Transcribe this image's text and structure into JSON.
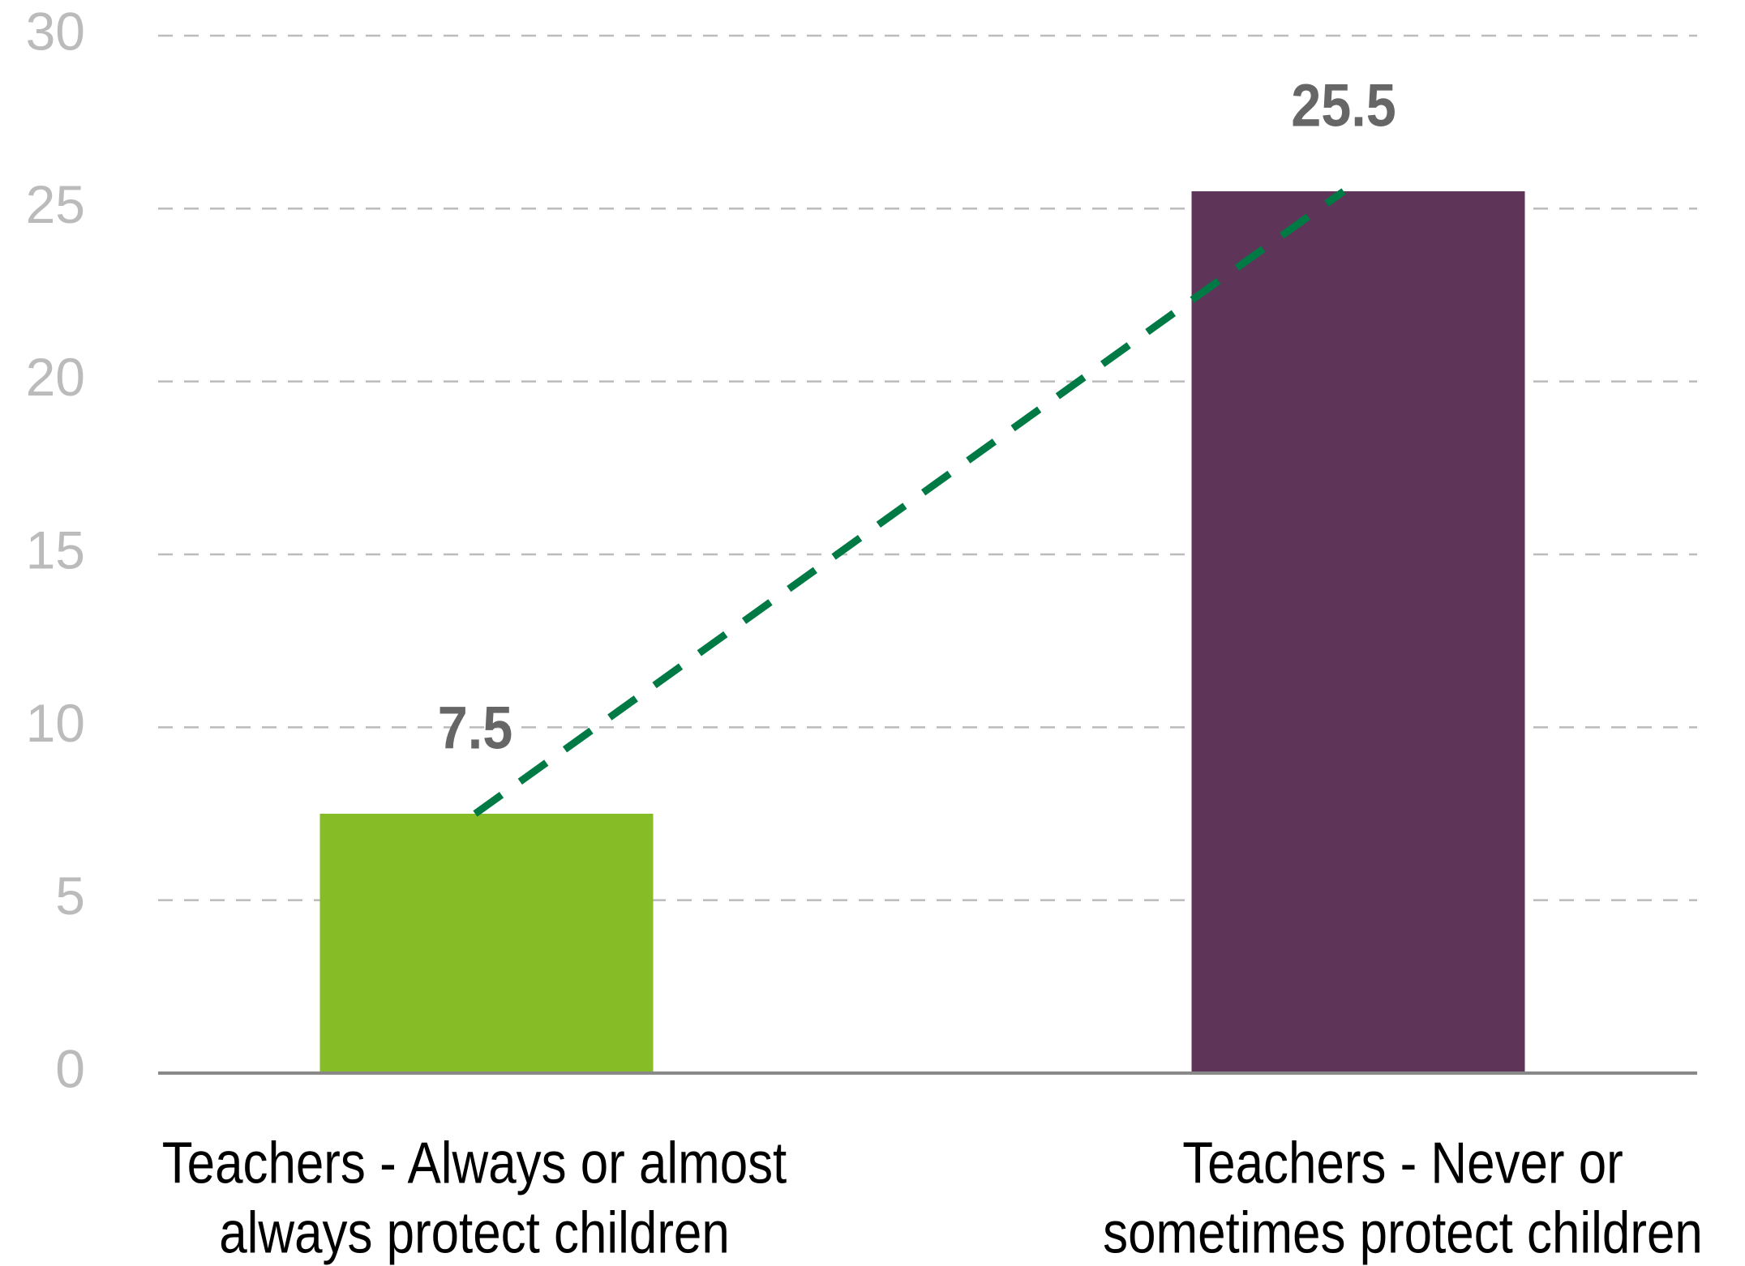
{
  "chart_data": {
    "type": "bar",
    "categories": [
      "Teachers - Always or almost always protect children",
      "Teachers - Never or sometimes protect children"
    ],
    "values": [
      7.5,
      25.5
    ],
    "colors": [
      "#86bc25",
      "#5f3459"
    ],
    "connector_color": "#007a45",
    "ylim": [
      0,
      30
    ],
    "yticks": [
      0,
      5,
      10,
      15,
      20,
      25,
      30
    ],
    "grid": true
  }
}
